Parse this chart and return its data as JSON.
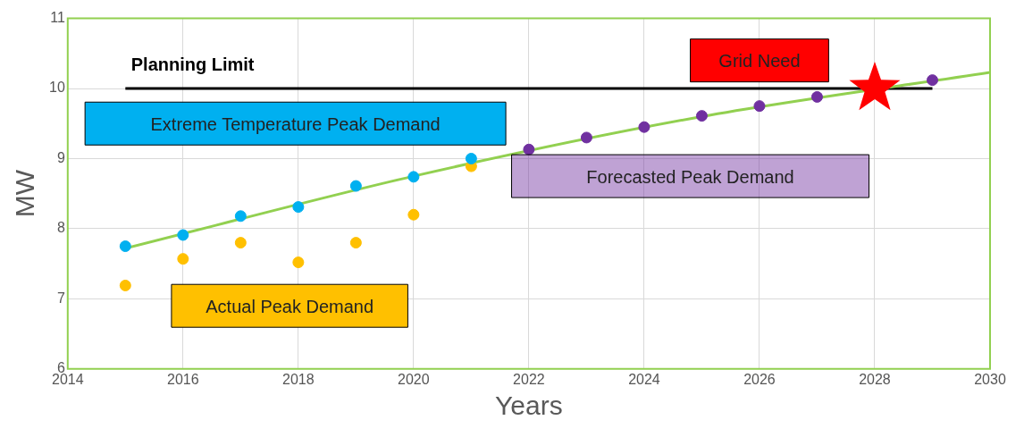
{
  "chart_data": {
    "type": "scatter",
    "xlabel": "Years",
    "ylabel": "MW",
    "xlim": [
      2014,
      2030
    ],
    "xticks": [
      2014,
      2016,
      2018,
      2020,
      2022,
      2024,
      2026,
      2028,
      2030
    ],
    "ylim": [
      6,
      11
    ],
    "yticks": [
      6,
      7,
      8,
      9,
      10,
      11
    ],
    "grid": true,
    "legend": false,
    "marker": "circle",
    "series": [
      {
        "name": "Extreme Temperature Peak Demand",
        "color": "#00b0f0",
        "x": [
          2015,
          2016,
          2017,
          2018,
          2019,
          2020,
          2021
        ],
        "values": [
          7.75,
          7.91,
          8.18,
          8.31,
          8.61,
          8.74,
          9.0
        ]
      },
      {
        "name": "Actual Peak Demand",
        "color": "#ffc000",
        "x": [
          2015,
          2016,
          2017,
          2018,
          2019,
          2020,
          2021
        ],
        "values": [
          7.19,
          7.57,
          7.8,
          7.52,
          7.8,
          8.2,
          8.89
        ]
      },
      {
        "name": "Forecasted Peak Demand",
        "color": "#7030a0",
        "x": [
          2022,
          2023,
          2024,
          2025,
          2026,
          2027,
          2029
        ],
        "values": [
          9.13,
          9.3,
          9.45,
          9.61,
          9.75,
          9.88,
          10.12
        ]
      },
      {
        "type": "line",
        "marker": "none",
        "color": "#92d050",
        "x": [
          2015,
          2020,
          2025,
          2030
        ],
        "values": [
          7.72,
          8.75,
          9.6,
          10.23
        ]
      },
      {
        "type": "line",
        "marker": "none",
        "name": "Planning Limit",
        "color": "#000000",
        "x": [
          2015,
          2029
        ],
        "values": [
          10,
          10
        ]
      },
      {
        "name": "Grid Need",
        "color": "#ff0000",
        "marker": "star",
        "x": [
          2028
        ],
        "values": [
          10
        ]
      }
    ]
  }
}
